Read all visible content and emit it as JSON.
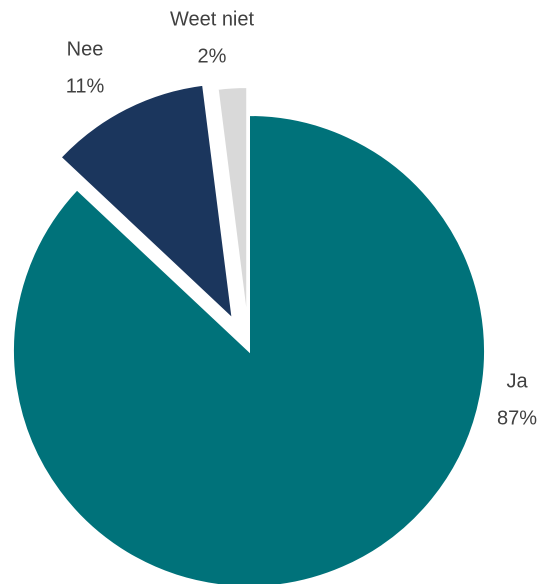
{
  "chart_data": {
    "type": "pie",
    "categories": [
      "Ja",
      "Nee",
      "Weet niet"
    ],
    "values": [
      87,
      11,
      2
    ],
    "value_labels": [
      "87%",
      "11%",
      "2%"
    ],
    "colors": [
      "#00727A",
      "#1B365D",
      "#D9D9D9"
    ]
  }
}
